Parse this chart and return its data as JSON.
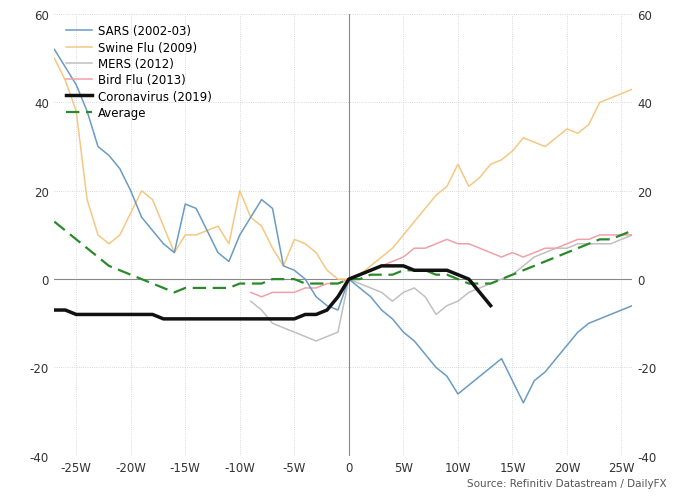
{
  "x": [
    -27,
    -26,
    -25,
    -24,
    -23,
    -22,
    -21,
    -20,
    -19,
    -18,
    -17,
    -16,
    -15,
    -14,
    -13,
    -12,
    -11,
    -10,
    -9,
    -8,
    -7,
    -6,
    -5,
    -4,
    -3,
    -2,
    -1,
    0,
    1,
    2,
    3,
    4,
    5,
    6,
    7,
    8,
    9,
    10,
    11,
    12,
    13,
    14,
    15,
    16,
    17,
    18,
    19,
    20,
    21,
    22,
    23,
    24,
    25,
    26
  ],
  "sars": [
    52,
    48,
    44,
    38,
    30,
    28,
    25,
    20,
    14,
    11,
    8,
    6,
    17,
    16,
    11,
    6,
    4,
    10,
    14,
    18,
    16,
    3,
    2,
    0,
    -4,
    -6,
    -7,
    0,
    -2,
    -4,
    -7,
    -9,
    -12,
    -14,
    -17,
    -20,
    -22,
    -26,
    -24,
    -22,
    -20,
    -18,
    -23,
    -28,
    -23,
    -21,
    -18,
    -15,
    -12,
    -10,
    -9,
    -8,
    -7,
    -6
  ],
  "swine_flu": [
    50,
    45,
    38,
    18,
    10,
    8,
    10,
    15,
    20,
    18,
    12,
    6,
    10,
    10,
    11,
    12,
    8,
    20,
    14,
    12,
    7,
    3,
    9,
    8,
    6,
    2,
    0,
    0,
    1,
    3,
    5,
    7,
    10,
    13,
    16,
    19,
    21,
    26,
    21,
    23,
    26,
    27,
    29,
    32,
    31,
    30,
    32,
    34,
    33,
    35,
    40,
    41,
    42,
    43
  ],
  "mers": [
    null,
    null,
    null,
    null,
    null,
    null,
    null,
    null,
    null,
    null,
    null,
    null,
    null,
    null,
    null,
    null,
    null,
    null,
    -5,
    -7,
    -10,
    -11,
    -12,
    -13,
    -14,
    -13,
    -12,
    0,
    -1,
    -2,
    -3,
    -5,
    -3,
    -2,
    -4,
    -8,
    -6,
    -5,
    -3,
    -2,
    -1,
    0,
    1,
    3,
    5,
    6,
    7,
    7,
    8,
    8,
    8,
    8,
    9,
    10
  ],
  "bird_flu": [
    null,
    null,
    null,
    null,
    null,
    null,
    null,
    null,
    null,
    null,
    null,
    null,
    null,
    null,
    null,
    null,
    null,
    null,
    -3,
    -4,
    -3,
    -3,
    -3,
    -2,
    -2,
    -1,
    -1,
    0,
    1,
    2,
    3,
    4,
    5,
    7,
    7,
    8,
    9,
    8,
    8,
    7,
    6,
    5,
    6,
    5,
    6,
    7,
    7,
    8,
    9,
    9,
    10,
    10,
    10,
    10
  ],
  "coronavirus": [
    -7,
    -7,
    -8,
    -8,
    -8,
    -8,
    -8,
    -8,
    -8,
    -8,
    -9,
    -9,
    -9,
    -9,
    -9,
    -9,
    -9,
    -9,
    -9,
    -9,
    -9,
    -9,
    -9,
    -8,
    -8,
    -7,
    -4,
    0,
    1,
    2,
    3,
    3,
    3,
    2,
    2,
    2,
    2,
    1,
    0,
    -3,
    -6,
    null,
    null,
    null,
    null,
    null,
    null,
    null,
    null,
    null,
    null,
    null,
    null,
    null
  ],
  "average": [
    13,
    11,
    9,
    7,
    5,
    3,
    2,
    1,
    0,
    -1,
    -2,
    -3,
    -2,
    -2,
    -2,
    -2,
    -2,
    -1,
    -1,
    -1,
    0,
    0,
    0,
    -1,
    -1,
    -1,
    -1,
    0,
    0,
    1,
    1,
    1,
    2,
    2,
    2,
    1,
    1,
    0,
    -1,
    -1,
    -1,
    0,
    1,
    2,
    3,
    4,
    5,
    6,
    7,
    8,
    9,
    9,
    10,
    11
  ],
  "colors": {
    "sars": "#6a9bc3",
    "swine_flu": "#f5c882",
    "mers": "#c0c0c0",
    "bird_flu": "#f0a0a8",
    "coronavirus": "#111111",
    "average": "#2a8a2a"
  },
  "ylim": [
    -40,
    60
  ],
  "xlim": [
    -27,
    26
  ],
  "xticks": [
    -25,
    -20,
    -15,
    -10,
    -5,
    0,
    5,
    10,
    15,
    20,
    25
  ],
  "yticks": [
    -40,
    -20,
    0,
    20,
    40,
    60
  ],
  "source_text": "Source: Refinitiv Datastream / DailyFX",
  "legend_labels": [
    "SARS (2002-03)",
    "Swine Flu (2009)",
    "MERS (2012)",
    "Bird Flu (2013)",
    "Coronavirus (2019)",
    "Average"
  ]
}
